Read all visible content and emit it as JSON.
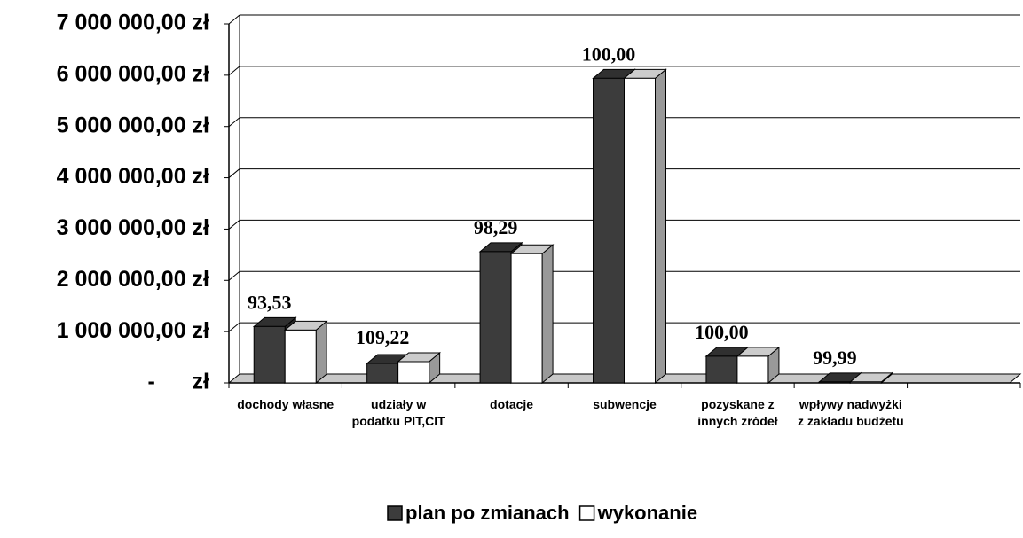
{
  "chart_data": {
    "type": "bar3d",
    "categories": [
      "dochody własne",
      "udziały w podatku PIT,CIT",
      "dotacje",
      "subwencje",
      "pozyskane z innych zródeł",
      "wpływy nadwyżki z zakładu budżetu",
      null
    ],
    "series": [
      {
        "name": "plan po zmianach",
        "color": "#3c3c3c",
        "values": [
          1100000,
          380000,
          2560000,
          5940000,
          520000,
          20000,
          null
        ]
      },
      {
        "name": "wykonanie",
        "color": "#ffffff",
        "values": [
          1030000,
          415000,
          2520000,
          5940000,
          520000,
          20000,
          null
        ]
      }
    ],
    "annotations": [
      "93,53",
      "109,22",
      "98,29",
      "100,00",
      "100,00",
      "99,99",
      null
    ],
    "ylim": [
      0,
      7000000
    ],
    "yticks": [
      {
        "value": 0,
        "label": "-      zł"
      },
      {
        "value": 1000000,
        "label": "1 000 000,00 zł"
      },
      {
        "value": 2000000,
        "label": "2 000 000,00 zł"
      },
      {
        "value": 3000000,
        "label": "3 000 000,00 zł"
      },
      {
        "value": 4000000,
        "label": "4 000 000,00 zł"
      },
      {
        "value": 5000000,
        "label": "5 000 000,00 zł"
      },
      {
        "value": 6000000,
        "label": "6 000 000,00 zł"
      },
      {
        "value": 7000000,
        "label": "7 000 000,00 zł"
      }
    ],
    "grid": true,
    "legend": "bottom"
  }
}
